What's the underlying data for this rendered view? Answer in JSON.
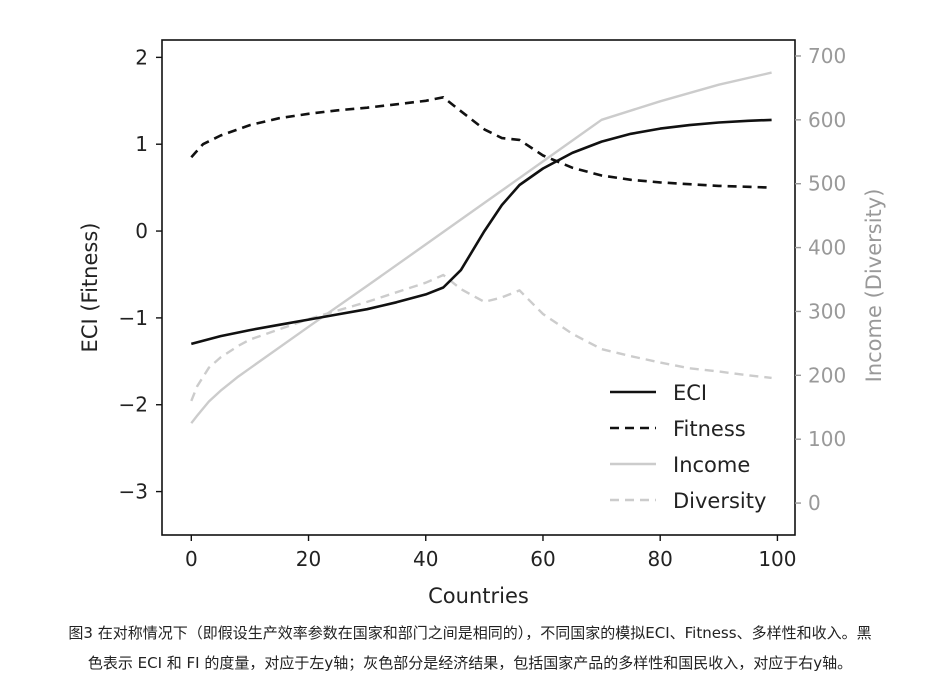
{
  "chart_data": {
    "type": "line",
    "xlabel": "Countries",
    "ylabel_left": "ECI (Fitness)",
    "ylabel_right": "Income (Diversity)",
    "xlim": [
      -5,
      103
    ],
    "ylim_left": [
      -3.5,
      2.2
    ],
    "ylim_right": [
      -50,
      725
    ],
    "x_ticks": [
      0,
      20,
      40,
      60,
      80,
      100
    ],
    "y_left_ticks": [
      2,
      1,
      0,
      -1,
      -2,
      -3
    ],
    "y_left_tick_labels": [
      "2",
      "1",
      "0",
      "−1",
      "−2",
      "−3"
    ],
    "y_right_ticks": [
      700,
      600,
      500,
      400,
      300,
      200,
      100,
      0
    ],
    "legend_position": "lower-right",
    "series": [
      {
        "name": "ECI",
        "axis": "left",
        "color": "#111111",
        "dash": "solid",
        "x": [
          0,
          5,
          10,
          15,
          20,
          25,
          30,
          35,
          40,
          43,
          46,
          50,
          53,
          56,
          60,
          65,
          70,
          75,
          80,
          85,
          90,
          95,
          99
        ],
        "y": [
          -1.3,
          -1.21,
          -1.14,
          -1.08,
          -1.02,
          -0.96,
          -0.9,
          -0.82,
          -0.73,
          -0.65,
          -0.45,
          0.0,
          0.3,
          0.53,
          0.72,
          0.9,
          1.03,
          1.12,
          1.18,
          1.22,
          1.25,
          1.27,
          1.28
        ]
      },
      {
        "name": "Fitness",
        "axis": "left",
        "color": "#111111",
        "dash": "dashed",
        "x": [
          0,
          2,
          5,
          10,
          15,
          20,
          25,
          30,
          35,
          40,
          43,
          46,
          50,
          53,
          56,
          60,
          65,
          70,
          75,
          80,
          85,
          90,
          95,
          99
        ],
        "y": [
          0.85,
          1.0,
          1.1,
          1.22,
          1.3,
          1.35,
          1.39,
          1.42,
          1.46,
          1.5,
          1.54,
          1.38,
          1.17,
          1.07,
          1.05,
          0.87,
          0.73,
          0.64,
          0.59,
          0.56,
          0.54,
          0.52,
          0.51,
          0.5
        ]
      },
      {
        "name": "Income",
        "axis": "right",
        "color": "#cccccc",
        "dash": "solid",
        "x": [
          0,
          1,
          3,
          5,
          8,
          10,
          20,
          30,
          40,
          50,
          60,
          70,
          80,
          90,
          99
        ],
        "y": [
          125,
          137,
          159,
          176,
          198,
          211,
          276,
          340,
          405,
          470,
          535,
          600,
          629,
          655,
          674
        ]
      },
      {
        "name": "Diversity",
        "axis": "right",
        "color": "#cccccc",
        "dash": "dashed",
        "x": [
          0,
          1,
          3,
          5,
          8,
          10,
          20,
          30,
          40,
          43,
          46,
          50,
          53,
          56,
          60,
          65,
          70,
          75,
          80,
          85,
          90,
          95,
          99
        ],
        "y": [
          160,
          183,
          212,
          228,
          246,
          256,
          288,
          315,
          345,
          357,
          335,
          315,
          322,
          333,
          296,
          265,
          241,
          230,
          220,
          211,
          206,
          200,
          196
        ]
      }
    ]
  },
  "caption": {
    "line1": "图3 在对称情况下（即假设生产效率参数在国家和部门之间是相同的），不同国家的模拟ECI、Fitness、多样性和收入。黑",
    "line2": "色表示 ECI 和 FI 的度量，对应于左y轴；灰色部分是经济结果，包括国家产品的多样性和国民收入，对应于右y轴。"
  }
}
